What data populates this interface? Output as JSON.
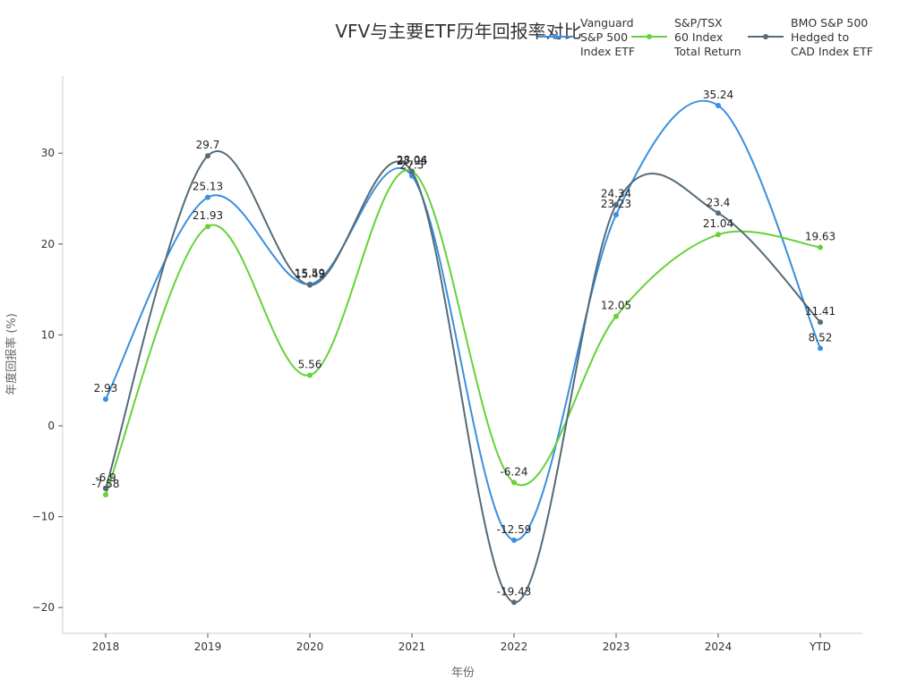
{
  "chart_data": {
    "type": "line",
    "title": "VFV与主要ETF历年回报率对比",
    "xlabel": "年份",
    "ylabel": "年度回报率 (%)",
    "categories": [
      "2018",
      "2019",
      "2020",
      "2021",
      "2022",
      "2023",
      "2024",
      "YTD"
    ],
    "y_ticks": [
      -20,
      -10,
      0,
      10,
      20,
      30
    ],
    "ylim": [
      -23,
      38.5
    ],
    "grid": false,
    "smooth": true,
    "legend_position": "top-right",
    "series": [
      {
        "name": "Vanguard S&P 500 Index ETF",
        "legend_lines": [
          "Vanguard",
          "S&P 500",
          "Index ETF"
        ],
        "color": "#3a8fde",
        "values": [
          2.93,
          25.13,
          15.59,
          27.5,
          -12.59,
          23.23,
          35.24,
          8.52
        ]
      },
      {
        "name": "S&P/TSX 60 Index Total Return",
        "legend_lines": [
          "S&P/TSX",
          "60 Index",
          "Total Return"
        ],
        "color": "#66d13a",
        "values": [
          -7.58,
          21.93,
          5.56,
          28.04,
          -6.24,
          12.05,
          21.04,
          19.63
        ]
      },
      {
        "name": "BMO S&P 500 Hedged to CAD Index ETF",
        "legend_lines": [
          "BMO S&P 500",
          "Hedged to",
          "CAD Index ETF"
        ],
        "color": "#556b78",
        "values": [
          -6.9,
          29.7,
          15.49,
          27.96,
          -19.43,
          24.34,
          23.4,
          11.41
        ]
      }
    ]
  }
}
